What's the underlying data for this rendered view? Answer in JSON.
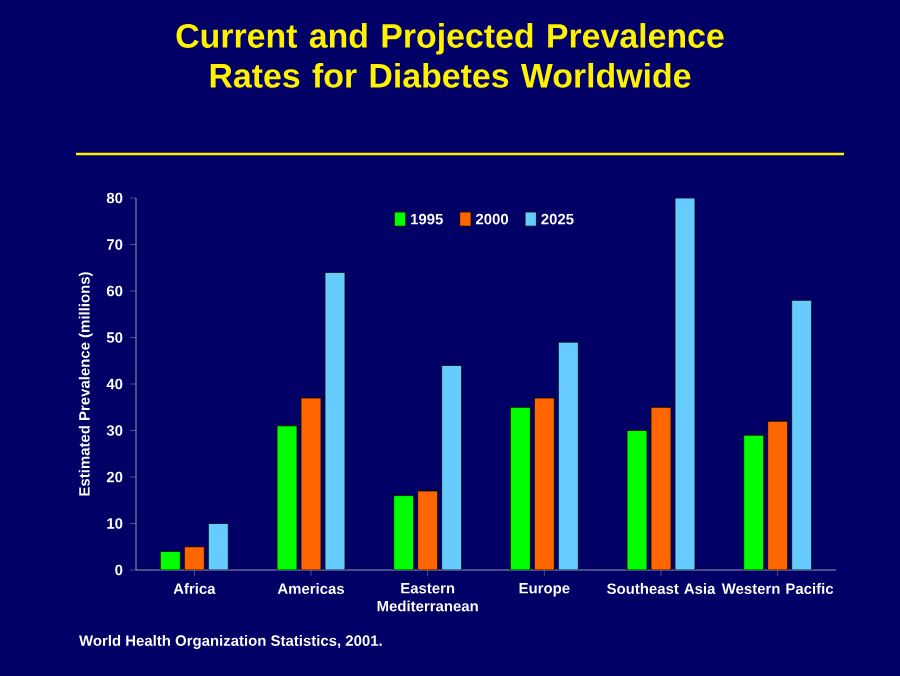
{
  "chart_data": {
    "type": "bar",
    "title": "Current and Projected Prevalence Rates for Diabetes Worldwide",
    "ylabel": "Estimated Prevalence (millions)",
    "annotations": [
      "World Health Organization Statistics, 2001."
    ],
    "categories": [
      "Africa",
      "Americas",
      "Eastern Mediterranean",
      "Europe",
      "Southeast Asia",
      "Western Pacific"
    ],
    "series": [
      {
        "name": "1995",
        "color": "#00ff00",
        "values": [
          4,
          31,
          16,
          35,
          30,
          29
        ]
      },
      {
        "name": "2000",
        "color": "#ff6600",
        "values": [
          5,
          37,
          17,
          37,
          35,
          32
        ]
      },
      {
        "name": "2025",
        "color": "#66ccff",
        "values": [
          10,
          64,
          44,
          49,
          80,
          58
        ]
      }
    ],
    "ylim": [
      0,
      80
    ],
    "yticks": [
      0,
      10,
      20,
      30,
      40,
      50,
      60,
      70,
      80
    ],
    "grid": false,
    "legend": "top"
  }
}
